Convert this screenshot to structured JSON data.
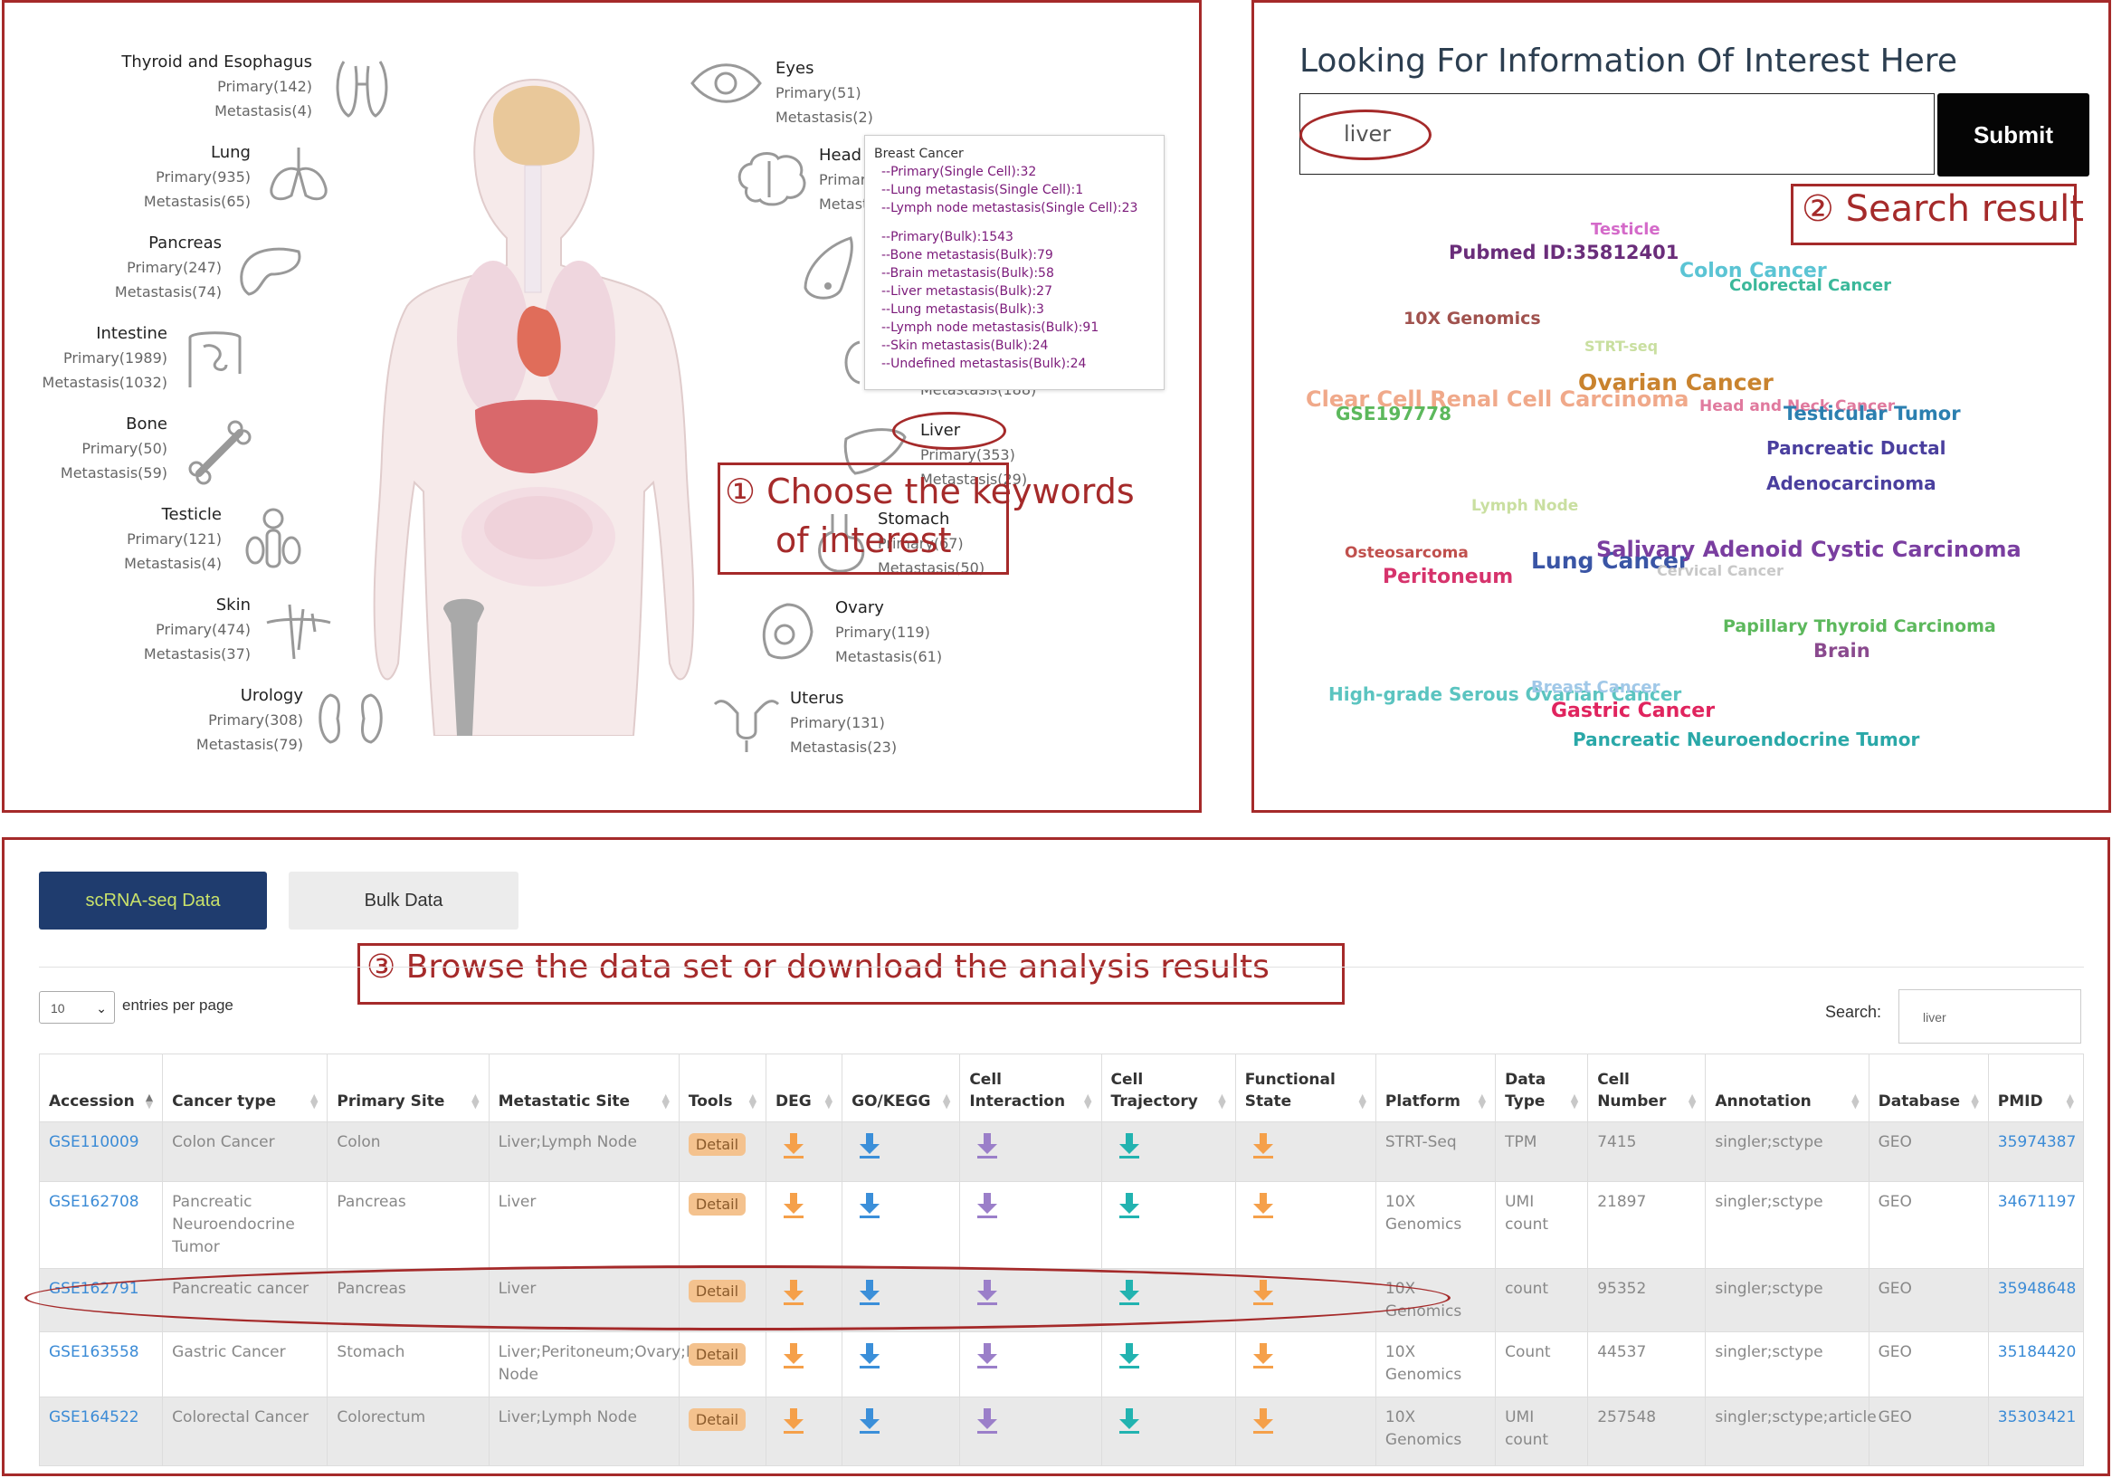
{
  "body_panel": {
    "organs_left": [
      {
        "name": "Thyroid and Esophagus",
        "primary": "Primary(142)",
        "metastasis": "Metastasis(4)",
        "icon": "thyroid-icon"
      },
      {
        "name": "Lung",
        "primary": "Primary(935)",
        "metastasis": "Metastasis(65)",
        "icon": "lung-icon"
      },
      {
        "name": "Pancreas",
        "primary": "Primary(247)",
        "metastasis": "Metastasis(74)",
        "icon": "pancreas-icon"
      },
      {
        "name": "Intestine",
        "primary": "Primary(1989)",
        "metastasis": "Metastasis(1032)",
        "icon": "intestine-icon"
      },
      {
        "name": "Bone",
        "primary": "Primary(50)",
        "metastasis": "Metastasis(59)",
        "icon": "bone-icon"
      },
      {
        "name": "Testicle",
        "primary": "Primary(121)",
        "metastasis": "Metastasis(4)",
        "icon": "testicle-icon"
      },
      {
        "name": "Skin",
        "primary": "Primary(474)",
        "metastasis": "Metastasis(37)",
        "icon": "skin-icon"
      },
      {
        "name": "Urology",
        "primary": "Primary(308)",
        "metastasis": "Metastasis(79)",
        "icon": "kidney-icon"
      }
    ],
    "organs_right": [
      {
        "name": "Eyes",
        "primary": "Primary(51)",
        "metastasis": "Metastasis(2)",
        "icon": "eye-icon"
      },
      {
        "name": "Head",
        "primary": "Primar",
        "metastasis": "Metast",
        "icon": "brain-icon"
      },
      {
        "name": "",
        "primary": "",
        "metastasis": "",
        "icon": "breast-icon"
      },
      {
        "name": "",
        "primary": "",
        "metastasis": "Metastasis(188)",
        "icon": "lymph-icon"
      },
      {
        "name": "Liver",
        "primary": "Primary(353)",
        "metastasis": "Metastasis(29)",
        "icon": "liver-icon"
      },
      {
        "name": "Stomach",
        "primary": "Primary(67)",
        "metastasis": "Metastasis(50)",
        "icon": "stomach-icon"
      },
      {
        "name": "Ovary",
        "primary": "Primary(119)",
        "metastasis": "Metastasis(61)",
        "icon": "ovary-icon"
      },
      {
        "name": "Uterus",
        "primary": "Primary(131)",
        "metastasis": "Metastasis(23)",
        "icon": "uterus-icon"
      }
    ],
    "tooltip": {
      "title": "Breast Cancer",
      "lines": [
        "--Primary(Single Cell):32",
        "--Lung metastasis(Single Cell):1",
        "--Lymph node metastasis(Single Cell):23",
        "--Primary(Bulk):1543",
        "--Bone metastasis(Bulk):79",
        "--Brain metastasis(Bulk):58",
        "--Liver metastasis(Bulk):27",
        "--Lung metastasis(Bulk):3",
        "--Lymph node metastasis(Bulk):91",
        "--Skin metastasis(Bulk):24",
        "--Undefined metastasis(Bulk):24"
      ]
    },
    "annotation_line1": "① Choose the keywords",
    "annotation_line2": "of interest"
  },
  "search_panel": {
    "title": "Looking For Information Of Interest Here",
    "query": "liver",
    "submit_label": "Submit",
    "annotation": "② Search result",
    "word_cloud": [
      {
        "text": "Testicle",
        "color": "#d46ac9"
      },
      {
        "text": "Pubmed ID:35812401",
        "color": "#6a2d7a"
      },
      {
        "text": "Colon Cancer",
        "color": "#5bc4d4"
      },
      {
        "text": "Colorectal Cancer",
        "color": "#3bb89a"
      },
      {
        "text": "10X Genomics",
        "color": "#a0524e"
      },
      {
        "text": "STRT-seq",
        "color": "#c9dfa0"
      },
      {
        "text": "Ovarian Cancer",
        "color": "#c9832e"
      },
      {
        "text": "Clear Cell Renal Cell Carcinoma",
        "color": "#f0a98a"
      },
      {
        "text": "GSE197778",
        "color": "#5cb85c"
      },
      {
        "text": "Head and Neck Cancer",
        "color": "#e07a9e"
      },
      {
        "text": "Testicular Tumor",
        "color": "#2b7fb0"
      },
      {
        "text": "Pancreatic Ductal",
        "color": "#4a3f9e"
      },
      {
        "text": "Adenocarcinoma",
        "color": "#4a3f9e"
      },
      {
        "text": "Lymph Node",
        "color": "#c9dfa0"
      },
      {
        "text": "Osteosarcoma",
        "color": "#c0504d"
      },
      {
        "text": "Peritoneum",
        "color": "#d6336c"
      },
      {
        "text": "Lung Cancer",
        "color": "#3a55a5"
      },
      {
        "text": "Salivary Adenoid Cystic Carcinoma",
        "color": "#7a3ea0"
      },
      {
        "text": "Cervical Cancer",
        "color": "#c8c8c8"
      },
      {
        "text": "Papillary Thyroid Carcinoma",
        "color": "#5cb85c"
      },
      {
        "text": "Brain",
        "color": "#8a4a8e"
      },
      {
        "text": "High-grade Serous Ovarian Cancer",
        "color": "#5bc4c0"
      },
      {
        "text": "Breast Cancer",
        "color": "#a0c8e8"
      },
      {
        "text": "Gastric Cancer",
        "color": "#e0245e"
      },
      {
        "text": "Pancreatic Neuroendocrine Tumor",
        "color": "#2aa8a8"
      }
    ]
  },
  "table_panel": {
    "tab_sc": "scRNA-seq Data",
    "tab_bulk": "Bulk Data",
    "page_size": "10",
    "entries_label": "entries per page",
    "search_label": "Search:",
    "search_value": "liver",
    "annotation": "③ Browse the data set or download the analysis results",
    "columns": [
      "Accession",
      "Cancer type",
      "Primary Site",
      "Metastatic Site",
      "Tools",
      "DEG",
      "GO/KEGG",
      "Cell Interaction",
      "Cell Trajectory",
      "Functional State",
      "Platform",
      "Data Type",
      "Cell Number",
      "Annotation",
      "Database",
      "PMID"
    ],
    "detail_label": "Detail",
    "rows": [
      {
        "accession": "GSE110009",
        "cancer_type": "Colon Cancer",
        "primary_site": "Colon",
        "metastatic_site": "Liver;Lymph Node",
        "platform": "STRT-Seq",
        "data_type": "TPM",
        "cell_number": "7415",
        "annotation": "singler;sctype",
        "database": "GEO",
        "pmid": "35974387"
      },
      {
        "accession": "GSE162708",
        "cancer_type": "Pancreatic Neuroendocrine Tumor",
        "primary_site": "Pancreas",
        "metastatic_site": "Liver",
        "platform": "10X Genomics",
        "data_type": "UMI count",
        "cell_number": "21897",
        "annotation": "singler;sctype",
        "database": "GEO",
        "pmid": "34671197"
      },
      {
        "accession": "GSE162791",
        "cancer_type": "Pancreatic cancer",
        "primary_site": "Pancreas",
        "metastatic_site": "Liver",
        "platform": "10X Genomics",
        "data_type": "count",
        "cell_number": "95352",
        "annotation": "singler;sctype",
        "database": "GEO",
        "pmid": "35948648"
      },
      {
        "accession": "GSE163558",
        "cancer_type": "Gastric Cancer",
        "primary_site": "Stomach",
        "metastatic_site": "Liver;Peritoneum;Ovary;Lymph Node",
        "platform": "10X Genomics",
        "data_type": "Count",
        "cell_number": "44537",
        "annotation": "singler;sctype",
        "database": "GEO",
        "pmid": "35184420"
      },
      {
        "accession": "GSE164522",
        "cancer_type": "Colorectal Cancer",
        "primary_site": "Colorectum",
        "metastatic_site": "Liver;Lymph Node",
        "platform": "10X Genomics",
        "data_type": "UMI count",
        "cell_number": "257548",
        "annotation": "singler;sctype;article",
        "database": "GEO",
        "pmid": "35303421"
      }
    ],
    "download_colors": {
      "deg": "#f5a04a",
      "go_kegg": "#3b8fd9",
      "cell_interaction": "#9b7fc9",
      "cell_trajectory": "#22b3b0",
      "functional_state": "#f5a04a"
    }
  }
}
